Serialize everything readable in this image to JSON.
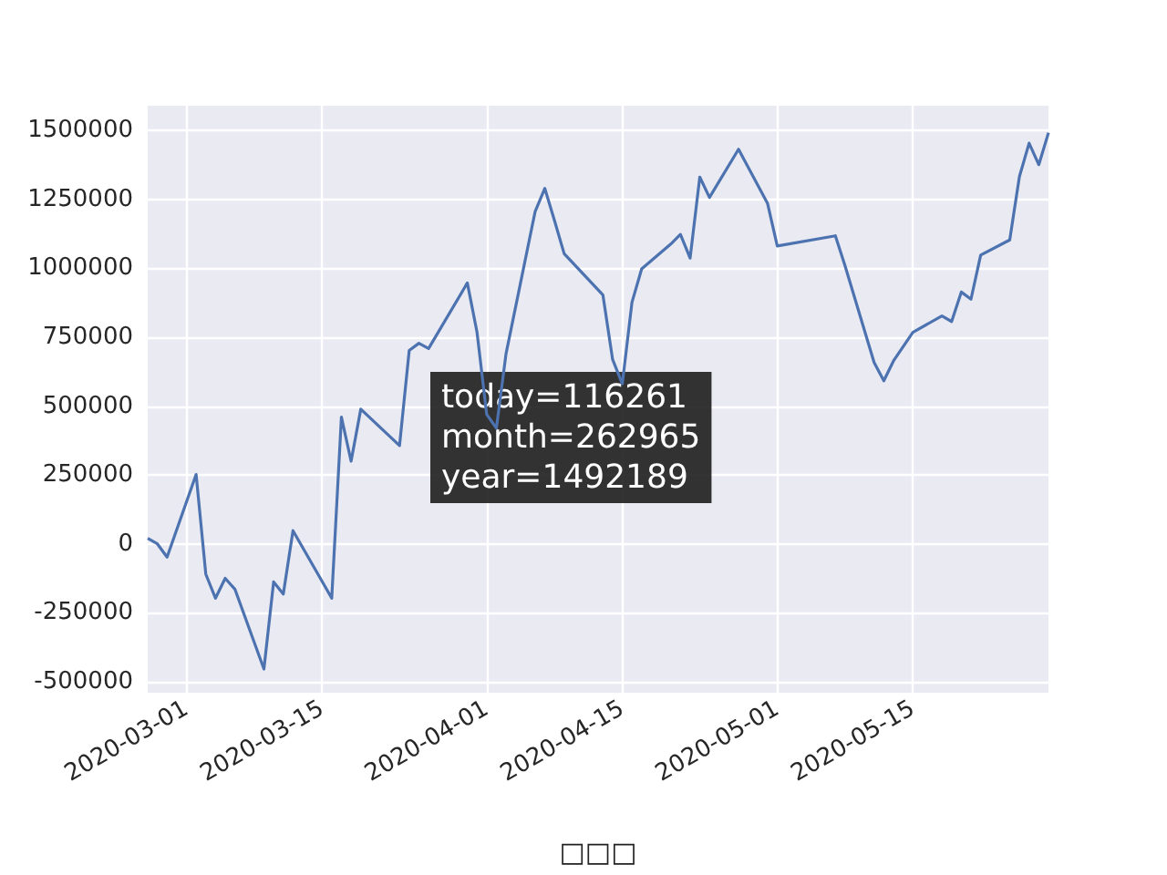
{
  "chart_data": {
    "type": "line",
    "xlabel": "□□□",
    "x": [
      "2020-02-26",
      "2020-02-27",
      "2020-02-28",
      "2020-03-02",
      "2020-03-03",
      "2020-03-04",
      "2020-03-05",
      "2020-03-06",
      "2020-03-09",
      "2020-03-10",
      "2020-03-11",
      "2020-03-12",
      "2020-03-16",
      "2020-03-17",
      "2020-03-18",
      "2020-03-19",
      "2020-03-23",
      "2020-03-24",
      "2020-03-25",
      "2020-03-26",
      "2020-03-30",
      "2020-03-31",
      "2020-04-01",
      "2020-04-02",
      "2020-04-03",
      "2020-04-06",
      "2020-04-07",
      "2020-04-08",
      "2020-04-09",
      "2020-04-13",
      "2020-04-14",
      "2020-04-15",
      "2020-04-16",
      "2020-04-17",
      "2020-04-20",
      "2020-04-21",
      "2020-04-22",
      "2020-04-23",
      "2020-04-24",
      "2020-04-27",
      "2020-04-30",
      "2020-05-01",
      "2020-05-07",
      "2020-05-08",
      "2020-05-11",
      "2020-05-12",
      "2020-05-13",
      "2020-05-15",
      "2020-05-18",
      "2020-05-19",
      "2020-05-20",
      "2020-05-21",
      "2020-05-22",
      "2020-05-25",
      "2020-05-26",
      "2020-05-27",
      "2020-05-28",
      "2020-05-29"
    ],
    "series": [
      {
        "color": "#4c72b0",
        "values": [
          20000,
          0,
          -48000,
          252000,
          -110000,
          -197000,
          -125000,
          -164000,
          -454000,
          -138000,
          -182000,
          48000,
          -197000,
          460000,
          300000,
          489000,
          357000,
          702000,
          728000,
          709000,
          947000,
          768000,
          470000,
          420000,
          691000,
          1206000,
          1290000,
          1173000,
          1053000,
          903000,
          669000,
          581000,
          877000,
          998000,
          1088000,
          1123000,
          1037000,
          1331000,
          1257000,
          1432000,
          1235000,
          1081000,
          1118000,
          1009000,
          658000,
          592000,
          664000,
          768000,
          827000,
          807000,
          914000,
          888000,
          1048000,
          1103000,
          1333000,
          1454000,
          1376000,
          1492000
        ]
      }
    ],
    "xlim": [
      "2020-02-26",
      "2020-05-29"
    ],
    "xticks": [
      "2020-03-01",
      "2020-03-15",
      "2020-04-01",
      "2020-04-15",
      "2020-05-01",
      "2020-05-15"
    ],
    "ylim": [
      -540000,
      1590000
    ],
    "yticks": [
      -500000,
      -250000,
      0,
      250000,
      500000,
      750000,
      1000000,
      1250000,
      1500000
    ],
    "grid": true,
    "marker": "none",
    "line_style": "solid",
    "annotations": [
      "today=116261\nmonth=262965\nyear=1492189"
    ]
  }
}
